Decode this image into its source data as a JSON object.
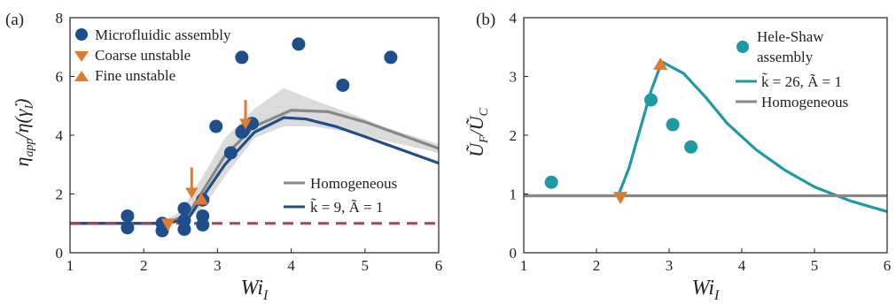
{
  "chart_data": [
    {
      "type": "line",
      "panel_label": "(a)",
      "xlabel": "Wi_I",
      "ylabel": "η_app/η(γ̇_I)",
      "xlim": [
        1,
        6
      ],
      "ylim": [
        0,
        8
      ],
      "xticks": [
        "1",
        "2",
        "3",
        "4",
        "5",
        "6"
      ],
      "yticks": [
        "0",
        "2",
        "4",
        "6",
        "8"
      ],
      "series": [
        {
          "name": "Microfluidic assembly",
          "kind": "scatter",
          "marker": "circle",
          "color": "#1f4e8c",
          "x": [
            1.78,
            1.78,
            2.25,
            2.25,
            2.55,
            2.55,
            2.55,
            2.8,
            2.8,
            2.8,
            2.98,
            3.18,
            3.33,
            3.33,
            3.47,
            3.35,
            4.1,
            4.7,
            5.35
          ],
          "y": [
            1.25,
            0.85,
            1.0,
            0.75,
            1.5,
            1.1,
            0.8,
            1.25,
            0.95,
            1.8,
            4.3,
            3.4,
            4.1,
            6.65,
            4.4,
            4.15,
            7.1,
            5.7,
            6.65
          ]
        },
        {
          "name": "Coarse unstable",
          "kind": "scatter",
          "marker": "triangle-down",
          "color": "#e07a2e",
          "x": [
            2.33
          ],
          "y": [
            0.95
          ]
        },
        {
          "name": "Fine unstable",
          "kind": "scatter",
          "marker": "triangle-up",
          "color": "#e07a2e",
          "x": [
            2.78
          ],
          "y": [
            1.85
          ]
        },
        {
          "name": "Homogeneous",
          "kind": "line",
          "color": "#888888",
          "x": [
            1,
            2.3,
            2.6,
            2.8,
            3.1,
            3.5,
            4.0,
            4.5,
            5.0,
            5.5,
            6.0
          ],
          "y": [
            1,
            1,
            1.3,
            2.1,
            3.3,
            4.3,
            4.85,
            4.8,
            4.45,
            4.0,
            3.55
          ]
        },
        {
          "name": "k̃ = 9, Ã = 1",
          "kind": "line",
          "color": "#1f4e8c",
          "x": [
            1,
            2.3,
            2.6,
            2.8,
            3.1,
            3.5,
            3.9,
            4.2,
            4.6,
            5.0,
            5.5,
            6.0
          ],
          "y": [
            1,
            1,
            1.15,
            1.9,
            3.0,
            4.1,
            4.6,
            4.55,
            4.3,
            3.95,
            3.5,
            3.05
          ]
        },
        {
          "name": "",
          "kind": "dashed",
          "color": "#b0405a",
          "x": [
            1,
            6
          ],
          "y": [
            1,
            1
          ]
        }
      ],
      "band": {
        "color": "#cfcfcf",
        "x": [
          2.2,
          2.5,
          2.8,
          3.1,
          3.5,
          3.9,
          4.3,
          4.8,
          5.3,
          6.0
        ],
        "low": [
          1,
          1.0,
          1.5,
          2.6,
          3.9,
          4.3,
          4.3,
          4.1,
          3.8,
          3.4
        ],
        "high": [
          1,
          1.4,
          2.6,
          3.9,
          4.9,
          5.6,
          5.2,
          4.75,
          4.25,
          3.7
        ]
      },
      "arrows": [
        {
          "x": 2.65,
          "y_from": 2.9,
          "y_to": 1.85
        },
        {
          "x": 3.38,
          "y_from": 5.2,
          "y_to": 4.2
        }
      ],
      "legend_top": [
        "Microfluidic assembly",
        "Coarse unstable",
        "Fine unstable"
      ],
      "legend_bottom": [
        "Homogeneous",
        "k̃ = 9, Ã = 1"
      ]
    },
    {
      "type": "line",
      "panel_label": "(b)",
      "xlabel": "Wi_I",
      "ylabel": "Ũ_F/Ũ_C",
      "xlim": [
        1,
        6
      ],
      "ylim": [
        0,
        4
      ],
      "xticks": [
        "1",
        "2",
        "3",
        "4",
        "5",
        "6"
      ],
      "yticks": [
        "0",
        "1",
        "2",
        "3",
        "4"
      ],
      "series": [
        {
          "name": "Hele-Shaw assembly",
          "kind": "scatter",
          "marker": "circle",
          "color": "#1e9aa3",
          "x": [
            1.38,
            2.75,
            3.05,
            3.3
          ],
          "y": [
            1.2,
            2.6,
            2.18,
            1.8
          ]
        },
        {
          "name": "k̃ = 26, Ã = 1",
          "kind": "line",
          "color": "#1e9aa3",
          "x": [
            1,
            2.3,
            2.45,
            2.6,
            2.75,
            2.9,
            3.2,
            3.5,
            3.8,
            4.2,
            4.6,
            5.0,
            5.5,
            6.0
          ],
          "y": [
            0.97,
            0.97,
            1.45,
            2.1,
            2.75,
            3.25,
            3.05,
            2.65,
            2.2,
            1.75,
            1.4,
            1.12,
            0.88,
            0.7
          ]
        },
        {
          "name": "Homogeneous",
          "kind": "line",
          "color": "#888888",
          "x": [
            1,
            6
          ],
          "y": [
            0.97,
            0.97
          ]
        },
        {
          "name": "",
          "kind": "scatter",
          "marker": "triangle-down",
          "color": "#e07a2e",
          "x": [
            2.33
          ],
          "y": [
            0.93
          ]
        },
        {
          "name": "",
          "kind": "scatter",
          "marker": "triangle-up",
          "color": "#e07a2e",
          "x": [
            2.88
          ],
          "y": [
            3.22
          ]
        }
      ],
      "legend": [
        "Hele-Shaw",
        "assembly",
        "k̃ = 26, Ã = 1",
        "Homogeneous"
      ]
    }
  ]
}
